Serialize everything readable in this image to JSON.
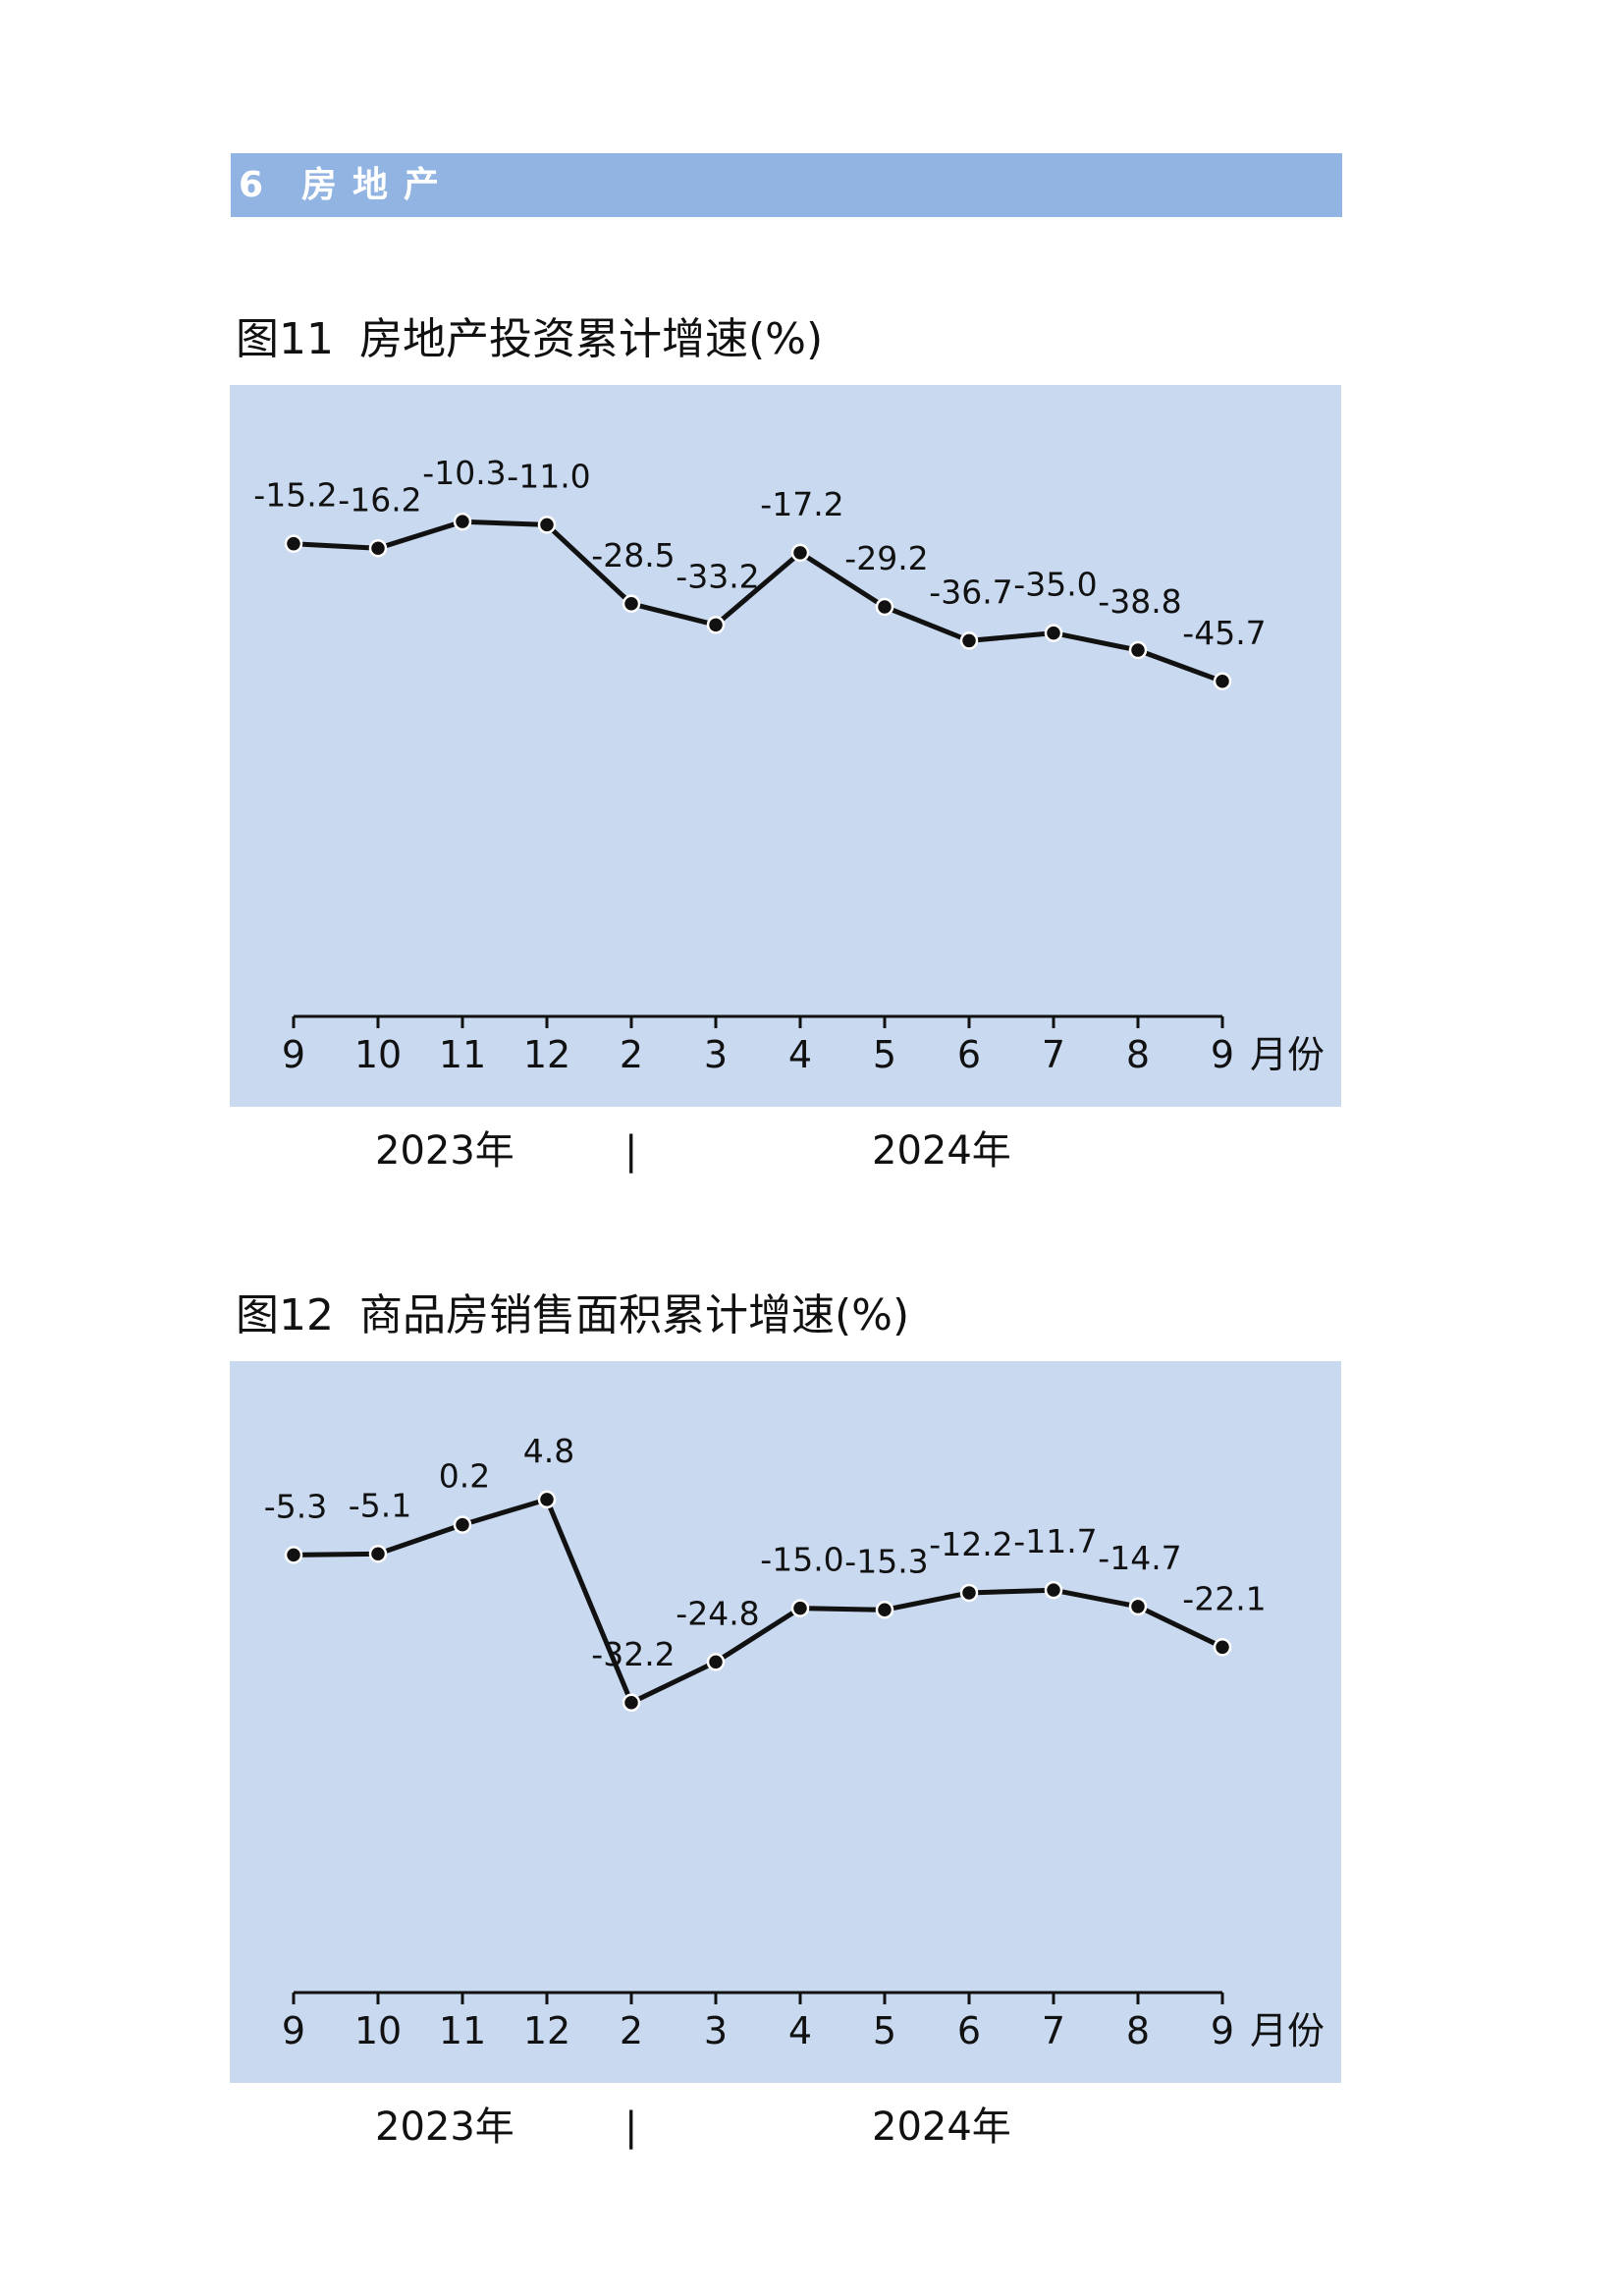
{
  "section": {
    "number": "6",
    "title": "房地产"
  },
  "chart_data": [
    {
      "type": "line",
      "title": "图11  房地产投资累计增速(%)",
      "title_parts": [
        "图11",
        "房地产投资累计增速(%)"
      ],
      "categories": [
        "9",
        "10",
        "11",
        "12",
        "2",
        "3",
        "4",
        "5",
        "6",
        "7",
        "8",
        "9"
      ],
      "values": [
        -15.2,
        -16.2,
        -10.3,
        -11.0,
        -28.5,
        -33.2,
        -17.2,
        -29.2,
        -36.7,
        -35.0,
        -38.8,
        -45.7
      ],
      "labels": [
        "-15.2",
        "-16.2",
        "-10.3",
        "-11.0",
        "-28.5",
        "-33.2",
        "-17.2",
        "-29.2",
        "-36.7",
        "-35.0",
        "-38.8",
        "-45.7"
      ],
      "xlabel": "月份",
      "ylim": [
        -120,
        20
      ],
      "grid": false,
      "year_labels": [
        "2023年",
        "|",
        "2024年"
      ]
    },
    {
      "type": "line",
      "title": "图12  商品房销售面积累计增速(%)",
      "title_parts": [
        "图12",
        "商品房销售面积累计增速(%)"
      ],
      "categories": [
        "9",
        "10",
        "11",
        "12",
        "2",
        "3",
        "4",
        "5",
        "6",
        "7",
        "8",
        "9"
      ],
      "values": [
        -5.3,
        -5.1,
        0.2,
        4.8,
        -32.2,
        -24.8,
        -15.0,
        -15.3,
        -12.2,
        -11.7,
        -14.7,
        -22.1
      ],
      "labels": [
        "-5.3",
        "-5.1",
        "0.2",
        "4.8",
        "-32.2",
        "-24.8",
        "-15.0",
        "-15.3",
        "-12.2",
        "-11.7",
        "-14.7",
        "-22.1"
      ],
      "xlabel": "月份",
      "ylim": [
        -85,
        30
      ],
      "grid": false,
      "year_labels": [
        "2023年",
        "|",
        "2024年"
      ]
    }
  ],
  "colors": {
    "section_bar": "#92b4e2",
    "panel": "#c8d9f0",
    "line": "#111111"
  }
}
